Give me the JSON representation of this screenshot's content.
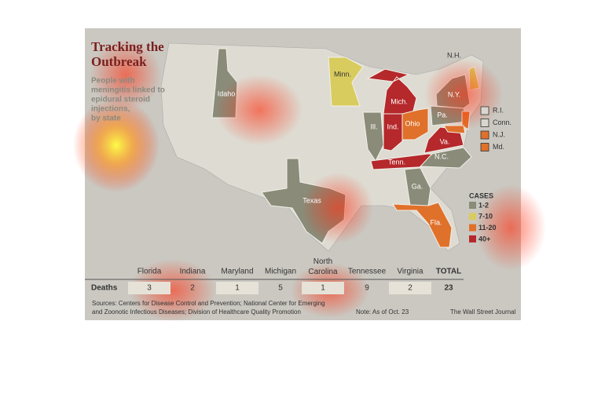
{
  "header": {
    "title": [
      "Tracking the",
      "Outbreak"
    ],
    "subtitle": [
      "People with",
      "meningitis linked to",
      "epidural steroid",
      "injections,",
      "by state"
    ]
  },
  "states": [
    {
      "label": "Idaho",
      "color": "#8a8b78"
    },
    {
      "label": "Minn.",
      "color": "#d9cc5e"
    },
    {
      "label": "Mich.",
      "color": "#b5282b"
    },
    {
      "label": "Ill.",
      "color": "#8a8b78"
    },
    {
      "label": "Ind.",
      "color": "#b5282b"
    },
    {
      "label": "Ohio",
      "color": "#e0712a"
    },
    {
      "label": "N.Y.",
      "color": "#8a8b78"
    },
    {
      "label": "Pa.",
      "color": "#8a8b78"
    },
    {
      "label": "N.H.",
      "color": "#d9cc5e"
    },
    {
      "label": "Va.",
      "color": "#b5282b"
    },
    {
      "label": "Tenn.",
      "color": "#b5282b"
    },
    {
      "label": "N.C.",
      "color": "#8a8b78"
    },
    {
      "label": "Ga.",
      "color": "#8a8b78"
    },
    {
      "label": "Fla.",
      "color": "#e0712a"
    },
    {
      "label": "Texas",
      "color": "#8a8b78"
    }
  ],
  "small_states": [
    {
      "label": "R.I.",
      "color": "#d8d6cf"
    },
    {
      "label": "Conn.",
      "color": "#d8d6cf"
    },
    {
      "label": "N.J.",
      "color": "#e0712a"
    },
    {
      "label": "Md.",
      "color": "#e0712a"
    }
  ],
  "legend": {
    "title": "CASES",
    "items": [
      {
        "label": "1-2",
        "color": "#8a8b78"
      },
      {
        "label": "7-10",
        "color": "#d9cc5e"
      },
      {
        "label": "11-20",
        "color": "#e0712a"
      },
      {
        "label": "40+",
        "color": "#b5282b"
      }
    ]
  },
  "table": {
    "row_label": "Deaths",
    "columns": [
      "Florida",
      "Indiana",
      "Maryland",
      "Michigan",
      "North\nCarolina",
      "Tennessee",
      "Virginia",
      "TOTAL"
    ],
    "values": [
      "3",
      "2",
      "1",
      "5",
      "1",
      "9",
      "2",
      "23"
    ]
  },
  "footer": {
    "sources": [
      "Sources: Centers for Disease Control and Prevention; National Center for Emerging",
      "and Zoonotic Infectious Diseases; Division of Healthcare Quality Promotion"
    ],
    "note": "Note: As of Oct. 23",
    "credit": "The Wall Street Journal"
  }
}
